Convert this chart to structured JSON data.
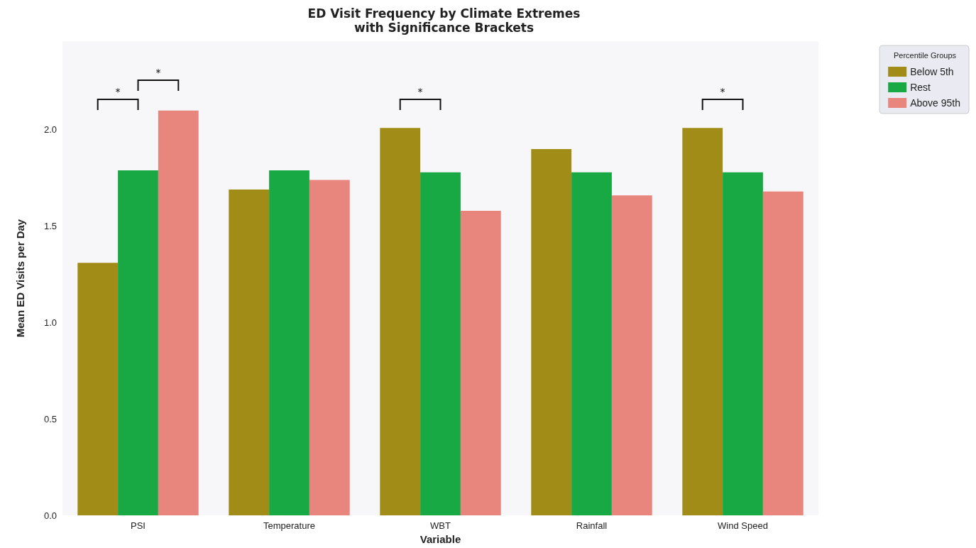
{
  "chart_data": {
    "type": "bar",
    "title": "ED Visit Frequency by Climate Extremes\nwith Significance Brackets",
    "xlabel": "Variable",
    "ylabel": "Mean ED Visits per Day",
    "legend_title": "Percentile Groups",
    "categories": [
      "PSI",
      "Temperature",
      "WBT",
      "Rainfall",
      "Wind Speed"
    ],
    "series": [
      {
        "name": "Below 5th",
        "color": "#a08c16",
        "values": [
          1.31,
          1.69,
          2.01,
          1.9,
          2.01
        ]
      },
      {
        "name": "Rest",
        "color": "#18a844",
        "values": [
          1.79,
          1.79,
          1.78,
          1.78,
          1.78
        ]
      },
      {
        "name": "Above 95th",
        "color": "#e8857c",
        "values": [
          2.1,
          1.74,
          1.58,
          1.66,
          1.68
        ]
      }
    ],
    "ylim": [
      0,
      2.46
    ],
    "yticks": [
      {
        "value": 0,
        "label": "0.0"
      },
      0.5,
      {
        "value": 1,
        "label": "1.0"
      },
      1.5,
      {
        "value": 2,
        "label": "2.0"
      }
    ],
    "grid": false,
    "legend": "top right",
    "annotations": [
      "*",
      "*",
      "*",
      "*"
    ]
  }
}
